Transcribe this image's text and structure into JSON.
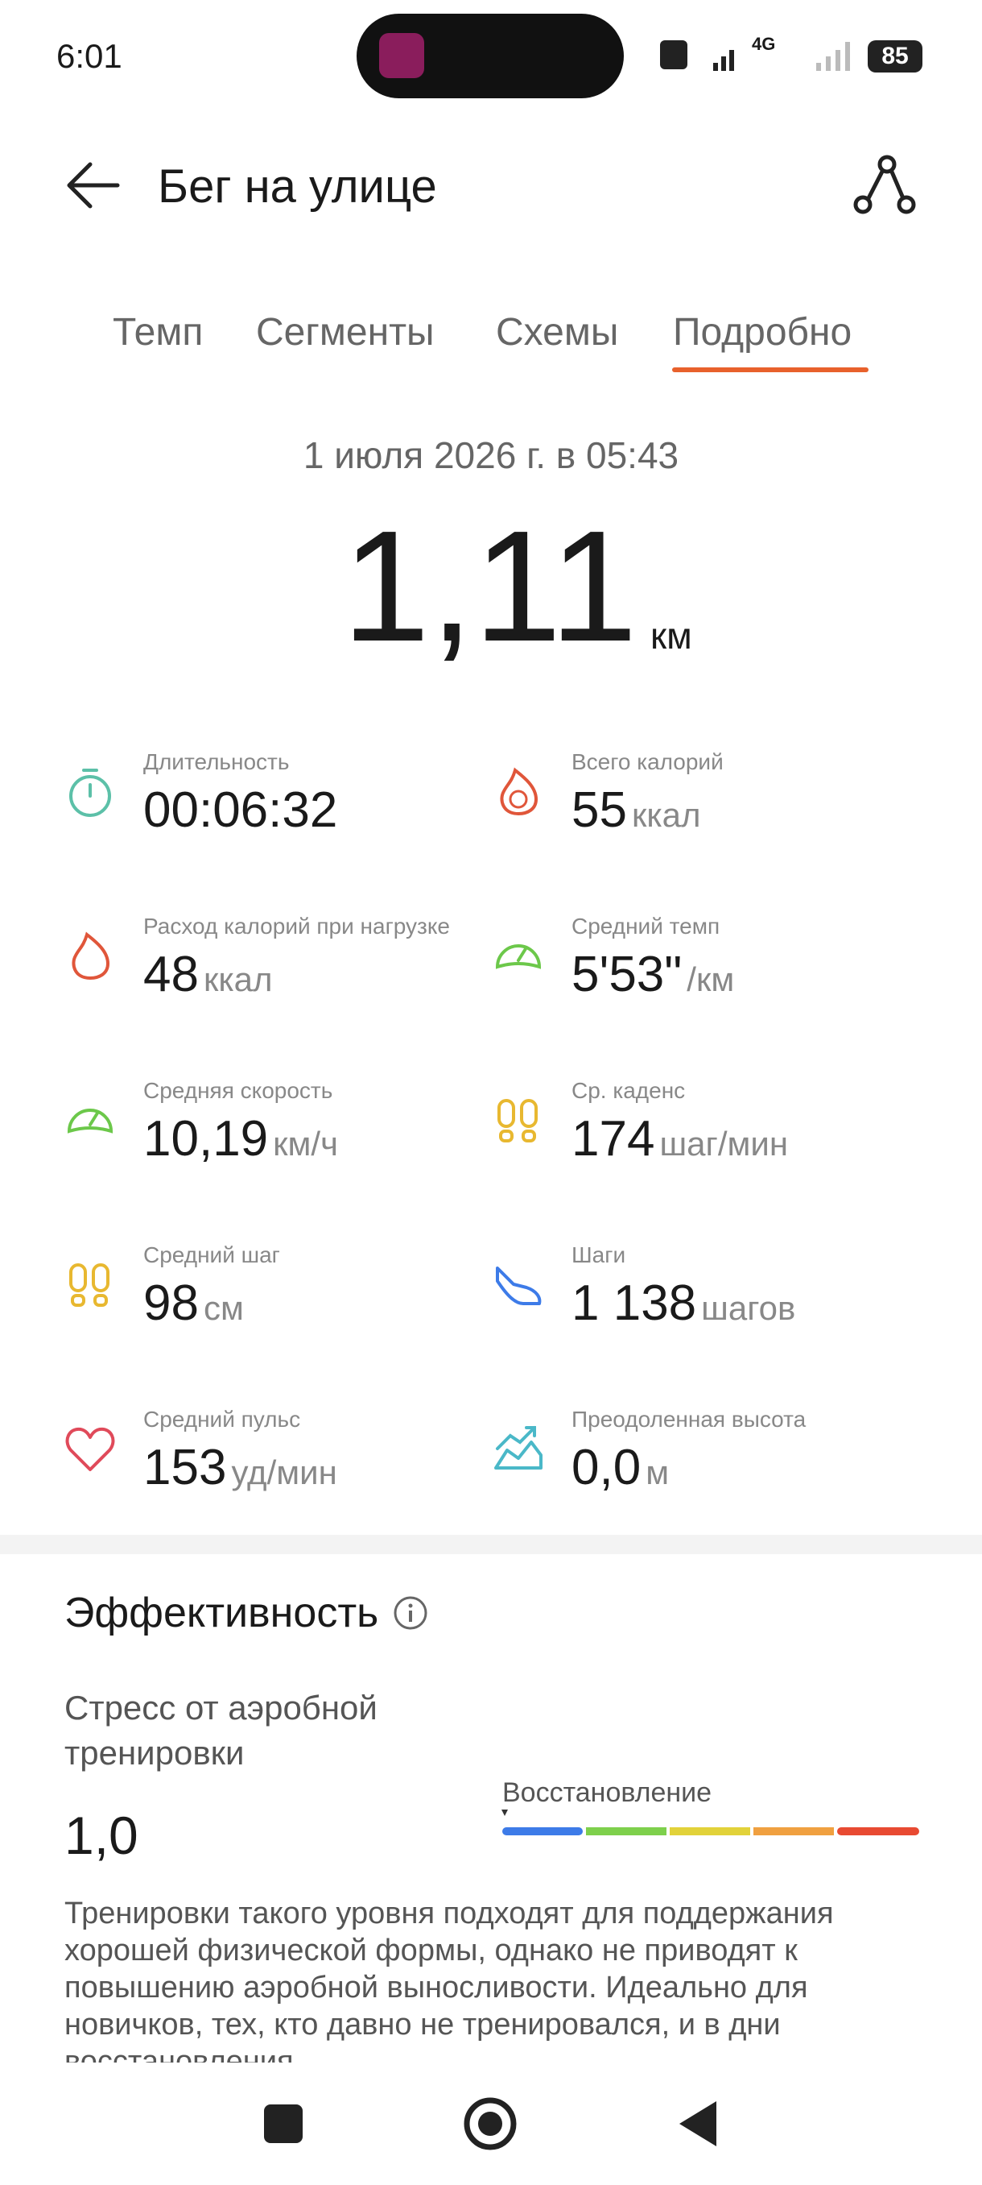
{
  "status_bar": {
    "time": "6:01",
    "network": "4G",
    "battery": "85"
  },
  "header": {
    "title": "Бег на улице"
  },
  "tabs": {
    "items": [
      "Темп",
      "Сегменты",
      "Схемы",
      "Подробно"
    ],
    "active": 3
  },
  "summary": {
    "date": "1 июля 2026 г. в 05:43",
    "distance": "1,11",
    "distance_unit": "км"
  },
  "metrics": [
    {
      "label": "Длительность",
      "value": "00:06:32"
    },
    {
      "label": "Всего калорий",
      "value": "55",
      "unit": "ккал"
    },
    {
      "label": "Расход калорий при нагрузке",
      "value": "48",
      "unit": "ккал"
    },
    {
      "label": "Средний темп",
      "value": "5'53\"",
      "unit": "/км"
    },
    {
      "label": "Средняя скорость",
      "value": "10,19",
      "unit": "км/ч"
    },
    {
      "label": "Ср. каденс",
      "value": "174",
      "unit": "шаг/мин"
    },
    {
      "label": "Средний шаг",
      "value": "98",
      "unit": "см"
    },
    {
      "label": "Шаги",
      "value": "1 138",
      "unit": "шагов"
    },
    {
      "label": "Средний пульс",
      "value": "153",
      "unit": "уд/мин"
    },
    {
      "label": "Преодоленная высота",
      "value": "0,0",
      "unit": "м"
    }
  ],
  "efficiency": {
    "title": "Эффективность",
    "metric_label": "Стресс от аэробной тренировки",
    "value": "1,0",
    "scale_label": "Восстановление",
    "description": "Тренировки такого уровня подходят для поддержания хорошей физической формы, однако не приводят к повышению аэробной выносливости. Идеально для новичков, тех, кто давно не тренировался, и в дни восстановления."
  }
}
